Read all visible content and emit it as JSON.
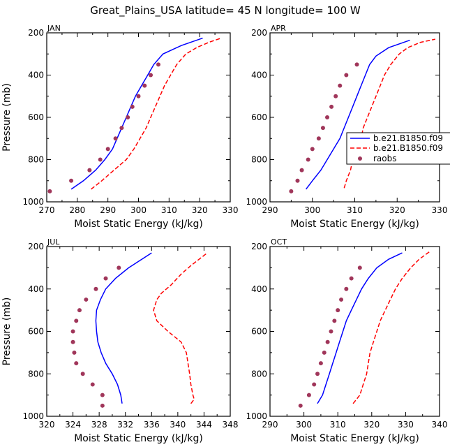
{
  "title": "Great_Plains_USA   latitude= 45 N longitude= 100 W",
  "colors": {
    "model_a": "#0000ff",
    "model_b": "#ff0000",
    "raobs": "#a0365a"
  },
  "legend": [
    {
      "label": "b.e21.B1850.f09",
      "style": "solid",
      "color": "#0000ff"
    },
    {
      "label": "b.e21.B1850.f09",
      "style": "dashed",
      "color": "#ff0000"
    },
    {
      "label": "raobs",
      "style": "marker",
      "color": "#a0365a"
    }
  ],
  "chart_data": [
    {
      "type": "line",
      "panel": "JAN",
      "xlabel": "Moist Static Energy (kJ/kg)",
      "ylabel": "Pressure (mb)",
      "xlim": [
        270,
        330
      ],
      "ylim": [
        1000,
        200
      ],
      "xticks": [
        270,
        280,
        290,
        300,
        310,
        320,
        330
      ],
      "yticks": [
        200,
        400,
        600,
        800,
        1000
      ],
      "series": [
        {
          "name": "b.e21.B1850.f09",
          "style": "solid",
          "points": [
            [
              278,
              940
            ],
            [
              282,
              900
            ],
            [
              286,
              850
            ],
            [
              289,
              800
            ],
            [
              291.5,
              750
            ],
            [
              293,
              700
            ],
            [
              294.5,
              650
            ],
            [
              296,
              600
            ],
            [
              297.5,
              550
            ],
            [
              299,
              500
            ],
            [
              301,
              450
            ],
            [
              303,
              400
            ],
            [
              305,
              350
            ],
            [
              308,
              300
            ],
            [
              314,
              260
            ],
            [
              321,
              225
            ]
          ]
        },
        {
          "name": "b.e21.B1850.f09",
          "style": "dashed",
          "points": [
            [
              284.5,
              940
            ],
            [
              288,
              900
            ],
            [
              292,
              850
            ],
            [
              296,
              800
            ],
            [
              298.5,
              750
            ],
            [
              300.5,
              700
            ],
            [
              302.5,
              650
            ],
            [
              304,
              600
            ],
            [
              305.5,
              550
            ],
            [
              307,
              500
            ],
            [
              308.5,
              450
            ],
            [
              310.5,
              400
            ],
            [
              312.5,
              350
            ],
            [
              315.5,
              300
            ],
            [
              319,
              270
            ],
            [
              323,
              245
            ],
            [
              327,
              225
            ]
          ]
        },
        {
          "name": "raobs",
          "style": "marker",
          "points": [
            [
              271,
              950
            ],
            [
              278,
              900
            ],
            [
              284,
              850
            ],
            [
              287.5,
              800
            ],
            [
              290,
              750
            ],
            [
              292.5,
              700
            ],
            [
              294.5,
              650
            ],
            [
              296.5,
              600
            ],
            [
              298,
              550
            ],
            [
              300,
              500
            ],
            [
              302,
              450
            ],
            [
              304,
              400
            ],
            [
              306.5,
              350
            ]
          ]
        }
      ]
    },
    {
      "type": "line",
      "panel": "APR",
      "xlabel": "Moist Static Energy (kJ/kg)",
      "ylabel": "",
      "xlim": [
        290,
        330
      ],
      "ylim": [
        1000,
        200
      ],
      "xticks": [
        290,
        300,
        310,
        320,
        330
      ],
      "yticks": [
        200,
        400,
        600,
        800,
        1000
      ],
      "series": [
        {
          "name": "b.e21.B1850.f09",
          "style": "solid",
          "points": [
            [
              298.5,
              940
            ],
            [
              300,
              900
            ],
            [
              302,
              850
            ],
            [
              303.5,
              800
            ],
            [
              305,
              750
            ],
            [
              306.5,
              700
            ],
            [
              307.5,
              650
            ],
            [
              308.5,
              600
            ],
            [
              309.5,
              550
            ],
            [
              310.5,
              500
            ],
            [
              311.5,
              450
            ],
            [
              312.5,
              400
            ],
            [
              313.5,
              350
            ],
            [
              315,
              310
            ],
            [
              318,
              270
            ],
            [
              323,
              235
            ]
          ]
        },
        {
          "name": "b.e21.B1850.f09",
          "style": "dashed",
          "points": [
            [
              307.5,
              935
            ],
            [
              308,
              900
            ],
            [
              309,
              850
            ],
            [
              309.5,
              800
            ],
            [
              310.5,
              750
            ],
            [
              311.5,
              700
            ],
            [
              312,
              650
            ],
            [
              313,
              600
            ],
            [
              314,
              550
            ],
            [
              315,
              500
            ],
            [
              316,
              450
            ],
            [
              317,
              400
            ],
            [
              318.5,
              350
            ],
            [
              320.5,
              300
            ],
            [
              322.5,
              270
            ],
            [
              325.5,
              245
            ],
            [
              329,
              230
            ]
          ]
        },
        {
          "name": "raobs",
          "style": "marker",
          "points": [
            [
              295,
              950
            ],
            [
              296.5,
              900
            ],
            [
              297.5,
              850
            ],
            [
              299,
              800
            ],
            [
              300,
              750
            ],
            [
              301.5,
              700
            ],
            [
              302.5,
              650
            ],
            [
              303.5,
              600
            ],
            [
              304.5,
              550
            ],
            [
              305.5,
              500
            ],
            [
              306.5,
              450
            ],
            [
              308,
              400
            ],
            [
              310.5,
              350
            ]
          ]
        }
      ]
    },
    {
      "type": "line",
      "panel": "JUL",
      "xlabel": "Moist Static Energy (kJ/kg)",
      "ylabel": "Pressure (mb)",
      "xlim": [
        320,
        348
      ],
      "ylim": [
        1000,
        200
      ],
      "xticks": [
        320,
        324,
        328,
        332,
        336,
        340,
        344,
        348
      ],
      "yticks": [
        200,
        400,
        600,
        800,
        1000
      ],
      "series": [
        {
          "name": "b.e21.B1850.f09",
          "style": "solid",
          "points": [
            [
              331.5,
              940
            ],
            [
              331.3,
              900
            ],
            [
              330.8,
              850
            ],
            [
              330,
              800
            ],
            [
              329,
              750
            ],
            [
              328.3,
              700
            ],
            [
              327.8,
              650
            ],
            [
              327.6,
              600
            ],
            [
              327.5,
              550
            ],
            [
              327.6,
              500
            ],
            [
              328.2,
              450
            ],
            [
              329,
              400
            ],
            [
              330.5,
              350
            ],
            [
              332.5,
              300
            ],
            [
              334.5,
              260
            ],
            [
              336,
              230
            ]
          ]
        },
        {
          "name": "b.e21.B1850.f09",
          "style": "dashed",
          "points": [
            [
              342,
              940
            ],
            [
              342.5,
              920
            ],
            [
              342.3,
              900
            ],
            [
              342,
              850
            ],
            [
              341.8,
              800
            ],
            [
              341.3,
              700
            ],
            [
              340.5,
              650
            ],
            [
              338.5,
              600
            ],
            [
              336.8,
              550
            ],
            [
              336.3,
              500
            ],
            [
              336.8,
              450
            ],
            [
              337.5,
              420
            ],
            [
              339,
              380
            ],
            [
              340.5,
              330
            ],
            [
              342,
              290
            ],
            [
              344.5,
              230
            ]
          ]
        },
        {
          "name": "raobs",
          "style": "marker",
          "points": [
            [
              328.5,
              950
            ],
            [
              328.5,
              900
            ],
            [
              327,
              850
            ],
            [
              325.5,
              800
            ],
            [
              324.5,
              750
            ],
            [
              324.2,
              700
            ],
            [
              324,
              650
            ],
            [
              324,
              600
            ],
            [
              324.5,
              550
            ],
            [
              325,
              500
            ],
            [
              326,
              450
            ],
            [
              327.5,
              400
            ],
            [
              329,
              350
            ],
            [
              331,
              300
            ]
          ]
        }
      ]
    },
    {
      "type": "line",
      "panel": "OCT",
      "xlabel": "Moist Static Energy (kJ/kg)",
      "ylabel": "",
      "xlim": [
        290,
        340
      ],
      "ylim": [
        1000,
        200
      ],
      "xticks": [
        290,
        300,
        310,
        320,
        330,
        340
      ],
      "yticks": [
        200,
        400,
        600,
        800,
        1000
      ],
      "series": [
        {
          "name": "b.e21.B1850.f09",
          "style": "solid",
          "points": [
            [
              304,
              940
            ],
            [
              305.5,
              900
            ],
            [
              306.5,
              850
            ],
            [
              307.5,
              800
            ],
            [
              308.5,
              750
            ],
            [
              309.5,
              700
            ],
            [
              310.5,
              650
            ],
            [
              311.5,
              600
            ],
            [
              312.5,
              550
            ],
            [
              314,
              500
            ],
            [
              315.5,
              450
            ],
            [
              317,
              400
            ],
            [
              319,
              350
            ],
            [
              321.5,
              300
            ],
            [
              325,
              260
            ],
            [
              329,
              230
            ]
          ]
        },
        {
          "name": "b.e21.B1850.f09",
          "style": "dashed",
          "points": [
            [
              314.5,
              940
            ],
            [
              316.5,
              900
            ],
            [
              317.5,
              850
            ],
            [
              318.5,
              800
            ],
            [
              319,
              750
            ],
            [
              319.5,
              700
            ],
            [
              320.5,
              650
            ],
            [
              321.5,
              600
            ],
            [
              322.5,
              550
            ],
            [
              324,
              500
            ],
            [
              325.5,
              450
            ],
            [
              327,
              400
            ],
            [
              329,
              350
            ],
            [
              331.5,
              300
            ],
            [
              334,
              260
            ],
            [
              337,
              225
            ]
          ]
        },
        {
          "name": "raobs",
          "style": "marker",
          "points": [
            [
              299,
              950
            ],
            [
              301.5,
              900
            ],
            [
              303,
              850
            ],
            [
              304,
              800
            ],
            [
              305,
              750
            ],
            [
              306,
              700
            ],
            [
              307,
              650
            ],
            [
              308,
              600
            ],
            [
              309,
              550
            ],
            [
              310,
              500
            ],
            [
              311,
              450
            ],
            [
              312.5,
              400
            ],
            [
              314,
              350
            ],
            [
              316.5,
              300
            ]
          ]
        }
      ]
    }
  ]
}
